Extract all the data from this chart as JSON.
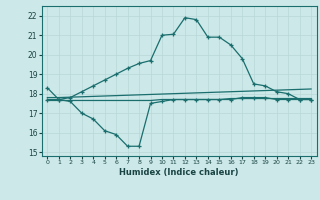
{
  "title": "",
  "xlabel": "Humidex (Indice chaleur)",
  "bg_color": "#cce8e8",
  "grid_color": "#b8d8d8",
  "line_color": "#1a6e6e",
  "xlim": [
    -0.5,
    23.5
  ],
  "ylim": [
    14.8,
    22.5
  ],
  "yticks": [
    15,
    16,
    17,
    18,
    19,
    20,
    21,
    22
  ],
  "xticks": [
    0,
    1,
    2,
    3,
    4,
    5,
    6,
    7,
    8,
    9,
    10,
    11,
    12,
    13,
    14,
    15,
    16,
    17,
    18,
    19,
    20,
    21,
    22,
    23
  ],
  "line1_x": [
    0,
    1,
    2,
    3,
    4,
    5,
    6,
    7,
    8,
    9,
    10,
    11,
    12,
    13,
    14,
    15,
    16,
    17,
    18,
    19,
    20,
    21,
    22,
    23
  ],
  "line1_y": [
    18.3,
    17.7,
    17.8,
    18.1,
    18.4,
    18.7,
    19.0,
    19.3,
    19.55,
    19.7,
    21.0,
    21.05,
    21.9,
    21.8,
    20.9,
    20.9,
    20.5,
    19.8,
    18.5,
    18.4,
    18.1,
    18.0,
    17.7,
    17.7
  ],
  "line2_x": [
    0,
    1,
    2,
    3,
    4,
    5,
    6,
    7,
    8,
    9,
    10,
    11,
    12,
    13,
    14,
    15,
    16,
    17,
    18,
    19,
    20,
    21,
    22,
    23
  ],
  "line2_y": [
    17.7,
    17.7,
    17.6,
    17.0,
    16.7,
    16.1,
    15.9,
    15.3,
    15.3,
    17.5,
    17.6,
    17.7,
    17.7,
    17.7,
    17.7,
    17.7,
    17.7,
    17.8,
    17.8,
    17.8,
    17.7,
    17.7,
    17.7,
    17.7
  ],
  "line3_x": [
    0,
    1,
    2,
    3,
    4,
    5,
    6,
    7,
    8,
    9,
    10,
    11,
    12,
    13,
    14,
    15,
    16,
    17,
    18,
    19,
    20,
    21,
    22,
    23
  ],
  "line3_y": [
    17.65,
    17.65,
    17.65,
    17.65,
    17.65,
    17.65,
    17.65,
    17.65,
    17.65,
    17.65,
    17.7,
    17.7,
    17.7,
    17.7,
    17.7,
    17.7,
    17.75,
    17.75,
    17.75,
    17.75,
    17.75,
    17.75,
    17.75,
    17.75
  ],
  "line4_x": [
    0,
    1,
    2,
    3,
    4,
    5,
    6,
    7,
    8,
    9,
    10,
    11,
    12,
    13,
    14,
    15,
    16,
    17,
    18,
    19,
    20,
    21,
    22,
    23
  ],
  "line4_y": [
    17.8,
    17.8,
    17.82,
    17.84,
    17.86,
    17.88,
    17.9,
    17.92,
    17.94,
    17.96,
    17.98,
    18.0,
    18.02,
    18.04,
    18.06,
    18.08,
    18.1,
    18.12,
    18.14,
    18.16,
    18.18,
    18.2,
    18.22,
    18.24
  ]
}
